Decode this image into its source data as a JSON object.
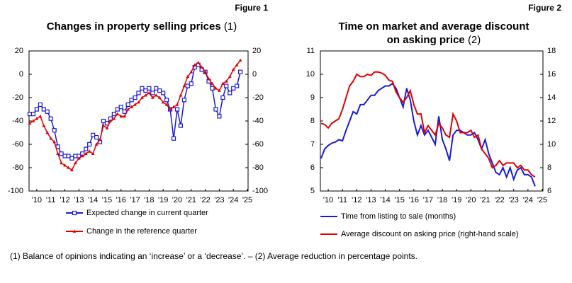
{
  "chart_data": [
    {
      "type": "line",
      "figure": "Figure 1",
      "title": "Changes in property selling prices",
      "title_note": "(1)",
      "x": [
        2010,
        2010.25,
        2010.5,
        2010.75,
        2011,
        2011.25,
        2011.5,
        2011.75,
        2012,
        2012.25,
        2012.5,
        2012.75,
        2013,
        2013.25,
        2013.5,
        2013.75,
        2014,
        2014.25,
        2014.5,
        2014.75,
        2015,
        2015.25,
        2015.5,
        2015.75,
        2016,
        2016.25,
        2016.5,
        2016.75,
        2017,
        2017.25,
        2017.5,
        2017.75,
        2018,
        2018.25,
        2018.5,
        2018.75,
        2019,
        2019.25,
        2019.5,
        2019.75,
        2020,
        2020.25,
        2020.5,
        2020.75,
        2021,
        2021.25,
        2021.5,
        2021.75,
        2022,
        2022.25,
        2022.5,
        2022.75,
        2023,
        2023.25,
        2023.5,
        2023.75,
        2024,
        2024.25,
        2024.5,
        2024.75,
        2025
      ],
      "series": [
        {
          "name": "Expected change in current quarter",
          "color": "#1a1adb",
          "marker": "square",
          "values": [
            -34,
            -34,
            -30,
            -26,
            -30,
            -32,
            -38,
            -48,
            -62,
            -68,
            -70,
            -70,
            -72,
            -70,
            -70,
            -68,
            -64,
            -60,
            -52,
            -54,
            -58,
            -40,
            -42,
            -38,
            -34,
            -30,
            -28,
            -32,
            -26,
            -22,
            -20,
            -16,
            -12,
            -14,
            -12,
            -16,
            -12,
            -14,
            -16,
            -22,
            -30,
            -55,
            -30,
            -44,
            -22,
            -10,
            -8,
            6,
            8,
            4,
            2,
            -6,
            -12,
            -30,
            -36,
            -20,
            -10,
            -16,
            -12,
            -10,
            2
          ]
        },
        {
          "name": "Change in the reference quarter",
          "color": "#e00000",
          "marker": "triangle",
          "values": [
            -42,
            -40,
            -38,
            -36,
            -44,
            -50,
            -55,
            -58,
            -68,
            -76,
            -78,
            -80,
            -82,
            -76,
            -72,
            -70,
            -68,
            -66,
            -68,
            -60,
            -56,
            -44,
            -46,
            -40,
            -38,
            -34,
            -36,
            -36,
            -30,
            -28,
            -26,
            -24,
            -20,
            -18,
            -16,
            -20,
            -18,
            -20,
            -24,
            -26,
            -30,
            -28,
            -26,
            -18,
            -10,
            -2,
            2,
            8,
            10,
            6,
            2,
            -4,
            -8,
            -12,
            -14,
            -8,
            -6,
            -2,
            4,
            8,
            12
          ]
        }
      ],
      "xlim": [
        2009.95,
        2025.55
      ],
      "xticks": [
        {
          "value": 2010.5,
          "label": "'10"
        },
        {
          "value": 2011.5,
          "label": "'11"
        },
        {
          "value": 2012.5,
          "label": "'12"
        },
        {
          "value": 2013.5,
          "label": "'13"
        },
        {
          "value": 2014.5,
          "label": "'14"
        },
        {
          "value": 2015.5,
          "label": "'15"
        },
        {
          "value": 2016.5,
          "label": "'16"
        },
        {
          "value": 2017.5,
          "label": "'17"
        },
        {
          "value": 2018.5,
          "label": "'18"
        },
        {
          "value": 2019.5,
          "label": "'19"
        },
        {
          "value": 2020.5,
          "label": "'20"
        },
        {
          "value": 2021.5,
          "label": "'21"
        },
        {
          "value": 2022.5,
          "label": "'22"
        },
        {
          "value": 2023.5,
          "label": "'23"
        },
        {
          "value": 2024.5,
          "label": "'24"
        },
        {
          "value": 2025.5,
          "label": "'25"
        }
      ],
      "ylim": [
        -100,
        20
      ],
      "yticks": [
        20,
        0,
        -20,
        -40,
        -60,
        -80,
        -100
      ],
      "y2lim": [
        -100,
        20
      ],
      "y2ticks": [
        20,
        0,
        -20,
        -40,
        -60,
        -80,
        -100
      ]
    },
    {
      "type": "line",
      "figure": "Figure 2",
      "title": "Time on market and average discount on asking price",
      "title_note": "(2)",
      "x": [
        2010,
        2010.25,
        2010.5,
        2010.75,
        2011,
        2011.25,
        2011.5,
        2011.75,
        2012,
        2012.25,
        2012.5,
        2012.75,
        2013,
        2013.25,
        2013.5,
        2013.75,
        2014,
        2014.25,
        2014.5,
        2014.75,
        2015,
        2015.25,
        2015.5,
        2015.75,
        2016,
        2016.25,
        2016.5,
        2016.75,
        2017,
        2017.25,
        2017.5,
        2017.75,
        2018,
        2018.25,
        2018.5,
        2018.75,
        2019,
        2019.25,
        2019.5,
        2019.75,
        2020,
        2020.25,
        2020.5,
        2020.75,
        2021,
        2021.25,
        2021.5,
        2021.75,
        2022,
        2022.25,
        2022.5,
        2022.75,
        2023,
        2023.25,
        2023.5,
        2023.75,
        2024,
        2024.25,
        2024.5,
        2024.75,
        2025
      ],
      "series": [
        {
          "name": "Time from listing to sale (months)",
          "color": "#1a1adb",
          "values": [
            6.4,
            6.8,
            6.95,
            7.05,
            7.1,
            7.2,
            7.15,
            7.6,
            8.0,
            8.4,
            8.3,
            8.7,
            8.7,
            8.9,
            9.1,
            9.1,
            9.3,
            9.4,
            9.5,
            9.5,
            9.6,
            9.4,
            9.0,
            8.6,
            9.4,
            8.9,
            8.0,
            7.4,
            7.8,
            7.4,
            7.6,
            7.3,
            7.0,
            8.2,
            7.2,
            6.8,
            6.3,
            7.4,
            7.6,
            7.6,
            7.5,
            7.4,
            7.4,
            7.5,
            7.2,
            6.8,
            7.2,
            6.6,
            6.2,
            5.8,
            5.7,
            6.0,
            5.6,
            6.0,
            5.5,
            5.9,
            6.0,
            5.7,
            5.7,
            5.6,
            5.2
          ]
        },
        {
          "name": "Average discount on asking price (right-hand scale)",
          "color": "#e00000",
          "axis": "y2",
          "values": [
            11.8,
            11.7,
            11.4,
            11.8,
            12.0,
            12.2,
            13.0,
            14.0,
            15.0,
            15.4,
            16.0,
            15.8,
            15.8,
            16.0,
            15.9,
            16.2,
            16.2,
            16.1,
            15.9,
            15.5,
            15.4,
            14.5,
            14.0,
            13.6,
            14.0,
            14.6,
            13.4,
            12.6,
            12.6,
            11.0,
            11.6,
            11.2,
            10.8,
            11.8,
            11.4,
            10.8,
            10.6,
            12.6,
            12.0,
            11.0,
            11.0,
            11.0,
            11.2,
            10.6,
            10.8,
            9.6,
            9.2,
            8.8,
            8.0,
            8.2,
            8.6,
            8.2,
            8.4,
            8.4,
            8.4,
            8.0,
            8.2,
            7.8,
            7.8,
            7.4,
            7.2
          ]
        }
      ],
      "xlim": [
        2009.95,
        2025.55
      ],
      "xticks": [
        {
          "value": 2010.5,
          "label": "'10"
        },
        {
          "value": 2011.5,
          "label": "'11"
        },
        {
          "value": 2012.5,
          "label": "'12"
        },
        {
          "value": 2013.5,
          "label": "'13"
        },
        {
          "value": 2014.5,
          "label": "'14"
        },
        {
          "value": 2015.5,
          "label": "'15"
        },
        {
          "value": 2016.5,
          "label": "'16"
        },
        {
          "value": 2017.5,
          "label": "'17"
        },
        {
          "value": 2018.5,
          "label": "'18"
        },
        {
          "value": 2019.5,
          "label": "'19"
        },
        {
          "value": 2020.5,
          "label": "'20"
        },
        {
          "value": 2021.5,
          "label": "'21"
        },
        {
          "value": 2022.5,
          "label": "'22"
        },
        {
          "value": 2023.5,
          "label": "'23"
        },
        {
          "value": 2024.5,
          "label": "'24"
        },
        {
          "value": 2025.5,
          "label": "'25"
        }
      ],
      "ylim": [
        5,
        11
      ],
      "yticks": [
        11,
        10,
        9,
        8,
        7,
        6,
        5
      ],
      "y2lim": [
        6,
        18
      ],
      "y2ticks": [
        18,
        16,
        14,
        12,
        10,
        8,
        6
      ]
    }
  ],
  "footnote": "(1) Balance of opinions indicating an ‘increase’ or a ‘decrease’. – (2) Average reduction in percentage points."
}
